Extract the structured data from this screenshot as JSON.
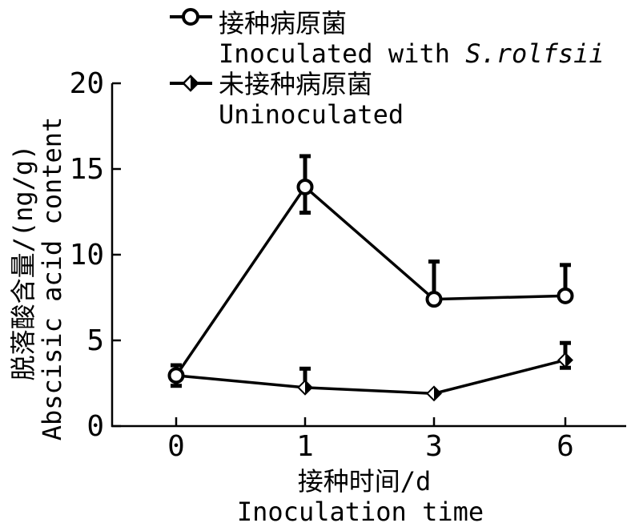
{
  "chart_data": {
    "type": "line",
    "title": "",
    "xlabel_cn": "接种时间/d",
    "xlabel_en": "Inoculation time",
    "ylabel_cn": "脱落酸含量/(ng/g)",
    "ylabel_en": "Abscisic acid content",
    "categories": [
      "0",
      "1",
      "3",
      "6"
    ],
    "ylim": [
      0,
      20
    ],
    "yticks": [
      "0",
      "5",
      "10",
      "15",
      "20"
    ],
    "grid": false,
    "legend_position": "top-left",
    "series": [
      {
        "name_cn": "接种病原菌",
        "name_en_prefix": "Inoculated with ",
        "name_en_italic": "S.rolfsii",
        "marker": "circle",
        "values": [
          2.95,
          13.95,
          7.4,
          7.6
        ],
        "err_upper": [
          0.6,
          1.8,
          2.2,
          1.8
        ],
        "err_lower": [
          0.6,
          1.5,
          0,
          0
        ]
      },
      {
        "name_cn": "未接种病原菌",
        "name_en": "Uninoculated",
        "marker": "diamond",
        "values": [
          2.95,
          2.25,
          1.9,
          3.85
        ],
        "err_upper": [
          0,
          1.1,
          0,
          1.0
        ],
        "err_lower": [
          0,
          0,
          0,
          0.45
        ]
      }
    ]
  }
}
